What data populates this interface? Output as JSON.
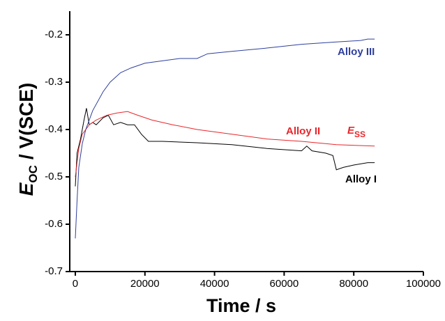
{
  "chart_data": {
    "type": "line",
    "x_label": "Time / s",
    "y_label": {
      "symbol": "E",
      "subscript": "OC",
      "unit": "/ V(SCE)"
    },
    "xlim": [
      -1600,
      100000
    ],
    "xticks": [
      0,
      20000,
      40000,
      60000,
      80000,
      100000
    ],
    "ylim": [
      -0.7,
      -0.15
    ],
    "yticks": [
      -0.7,
      -0.6,
      -0.5,
      -0.4,
      -0.3,
      -0.2
    ],
    "grid": false,
    "series": [
      {
        "name": "Alloy I",
        "color": "#000000",
        "x": [
          0,
          500,
          1500,
          2500,
          3200,
          4000,
          5000,
          6000,
          8000,
          9500,
          11000,
          13000,
          15000,
          17000,
          19000,
          21000,
          25000,
          35000,
          45000,
          55000,
          65000,
          66500,
          68000,
          72000,
          74000,
          75000,
          77000,
          80000,
          84000,
          86000
        ],
        "values": [
          -0.52,
          -0.45,
          -0.42,
          -0.38,
          -0.355,
          -0.39,
          -0.385,
          -0.39,
          -0.375,
          -0.37,
          -0.39,
          -0.385,
          -0.39,
          -0.39,
          -0.41,
          -0.425,
          -0.425,
          -0.428,
          -0.432,
          -0.44,
          -0.445,
          -0.435,
          -0.445,
          -0.45,
          -0.455,
          -0.485,
          -0.48,
          -0.475,
          -0.47,
          -0.47
        ]
      },
      {
        "name": "Alloy II",
        "color": "#e8262a",
        "x": [
          0,
          1000,
          2000,
          4000,
          6000,
          9000,
          12000,
          15000,
          18000,
          22000,
          28000,
          35000,
          45000,
          55000,
          65000,
          75000,
          86000
        ],
        "values": [
          -0.5,
          -0.44,
          -0.41,
          -0.39,
          -0.38,
          -0.37,
          -0.365,
          -0.362,
          -0.37,
          -0.38,
          -0.39,
          -0.4,
          -0.41,
          -0.42,
          -0.425,
          -0.432,
          -0.435
        ]
      },
      {
        "name": "Alloy III",
        "color": "#2e3f9e",
        "x": [
          0,
          500,
          1000,
          2000,
          3000,
          5000,
          8000,
          10000,
          13000,
          16000,
          20000,
          25000,
          30000,
          35000,
          38000,
          45000,
          55000,
          65000,
          75000,
          82000,
          84000,
          86000
        ],
        "values": [
          -0.63,
          -0.55,
          -0.48,
          -0.43,
          -0.4,
          -0.36,
          -0.32,
          -0.3,
          -0.28,
          -0.27,
          -0.26,
          -0.255,
          -0.25,
          -0.25,
          -0.24,
          -0.235,
          -0.228,
          -0.22,
          -0.215,
          -0.212,
          -0.209,
          -0.209
        ]
      }
    ],
    "annotation": {
      "symbol": "E",
      "subscript": "SS",
      "color": "#e8262a"
    }
  }
}
